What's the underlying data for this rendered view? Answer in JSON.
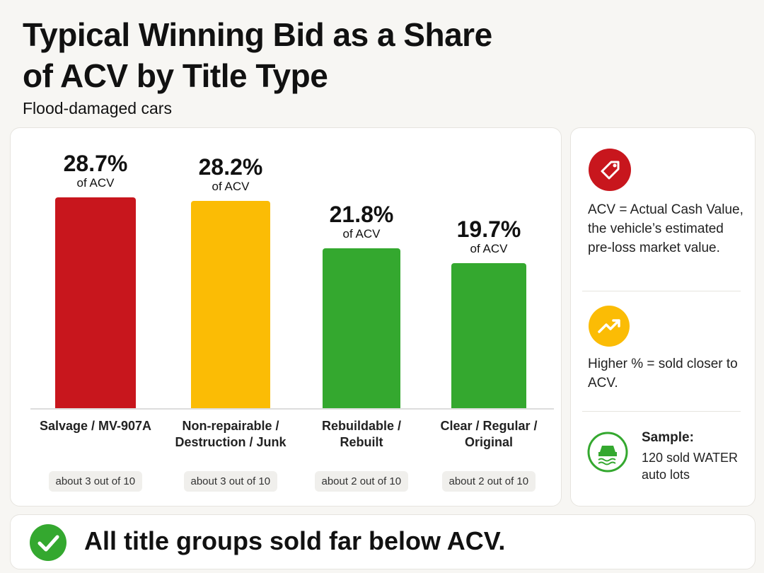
{
  "chart_data": {
    "type": "bar",
    "title": "Typical Winning Bid as a Share of ACV by Title Type",
    "subtitle": "Flood-damaged cars",
    "categories": [
      "Salvage / MV-907A",
      "Non-repairable / Destruction / Junk",
      "Rebuildable / Rebuilt",
      "Clear / Regular / Original"
    ],
    "values": [
      28.7,
      28.2,
      21.8,
      19.7
    ],
    "value_labels": [
      "28.7%",
      "28.2%",
      "21.8%",
      "19.7%"
    ],
    "value_note": "of ACV",
    "badges": [
      "about 3 out of 10",
      "about 3 out of 10",
      "about 2 out of 10",
      "about 2 out of 10"
    ],
    "colors": [
      "#c8161d",
      "#fbbc05",
      "#34a82f",
      "#34a82f"
    ]
  },
  "side_panel": {
    "notes": [
      {
        "text": "ACV = Actual Cash Value, the vehicle’s estimated pre-loss market value."
      },
      {
        "text": "Higher % = sold closer to ACV."
      },
      {
        "title": "Sample:",
        "text": "120 sold WATER auto lots"
      }
    ]
  },
  "footer": {
    "text": "All title groups sold far below ACV."
  }
}
